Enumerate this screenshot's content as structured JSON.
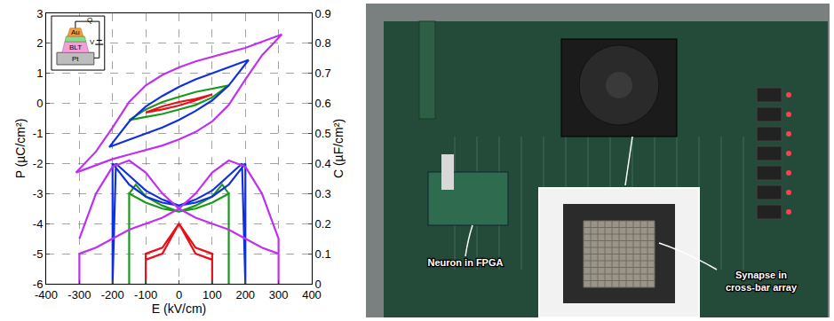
{
  "chart_data": {
    "type": "line",
    "xlabel": "E (kV/cm)",
    "ylabel": "P (µC/cm²)",
    "y2label": "C (µF/cm²)",
    "xlim": [
      -400,
      400
    ],
    "xticks": [
      -400,
      -300,
      -200,
      -100,
      0,
      100,
      200,
      300,
      400
    ],
    "ylim": [
      -6,
      3
    ],
    "yticks": [
      -6,
      -5,
      -4,
      -3,
      -2,
      -1,
      0,
      1,
      2,
      3
    ],
    "y2lim": [
      0,
      0.9
    ],
    "y2ticks": [
      0,
      0.1,
      0.2,
      0.3,
      0.4,
      0.5,
      0.6,
      0.7,
      0.8,
      0.9
    ],
    "grid": true,
    "annotations": [
      "Au",
      "BLT",
      "Pt",
      "Q",
      "V"
    ],
    "series": [
      {
        "color": "#e8101a",
        "x": [
          100,
          50,
          0,
          -50,
          -100,
          -50,
          0,
          50,
          100
        ],
        "values": [
          0.3,
          0.15,
          0.05,
          -0.1,
          -0.3,
          -0.2,
          -0.07,
          0.1,
          0.3
        ]
      },
      {
        "color": "#1a9a1a",
        "x": [
          150,
          100,
          50,
          0,
          -50,
          -100,
          -150,
          -100,
          -50,
          0,
          50,
          100,
          150
        ],
        "values": [
          0.6,
          0.5,
          0.38,
          0.22,
          0.05,
          -0.2,
          -0.55,
          -0.45,
          -0.35,
          -0.2,
          -0.05,
          0.2,
          0.6
        ]
      },
      {
        "color": "#1030e0",
        "x": [
          210,
          150,
          100,
          50,
          0,
          -50,
          -100,
          -150,
          -210,
          -150,
          -100,
          -50,
          0,
          50,
          100,
          150,
          210
        ],
        "values": [
          1.45,
          1.2,
          1.0,
          0.8,
          0.55,
          0.25,
          -0.1,
          -0.6,
          -1.45,
          -1.2,
          -1.0,
          -0.8,
          -0.55,
          -0.25,
          0.1,
          0.6,
          1.45
        ]
      },
      {
        "color": "#c030f0",
        "x": [
          310,
          250,
          200,
          150,
          100,
          50,
          0,
          -50,
          -100,
          -150,
          -200,
          -250,
          -310,
          -250,
          -200,
          -150,
          -100,
          -50,
          0,
          50,
          100,
          150,
          200,
          250,
          310
        ],
        "values": [
          2.3,
          2.05,
          1.85,
          1.7,
          1.55,
          1.4,
          1.2,
          0.95,
          0.6,
          0.05,
          -0.8,
          -1.6,
          -2.3,
          -2.05,
          -1.85,
          -1.7,
          -1.55,
          -1.4,
          -1.2,
          -0.95,
          -0.6,
          -0.05,
          0.8,
          1.6,
          2.3
        ]
      },
      {
        "color": "#e8101a",
        "axis": "y2",
        "x": [
          -100,
          -100,
          -50,
          0,
          50,
          100,
          100,
          100,
          50,
          0,
          -50,
          -100,
          -100
        ],
        "values": [
          0,
          0.1,
          0.12,
          0.2,
          0.12,
          0.1,
          0,
          0.08,
          0.1,
          0.2,
          0.1,
          0.08,
          0
        ]
      },
      {
        "color": "#1a9a1a",
        "axis": "y2",
        "x": [
          -150,
          -150,
          -100,
          -50,
          0,
          50,
          100,
          130,
          150,
          150,
          150,
          100,
          50,
          0,
          -50,
          -100,
          -130,
          -150,
          -150
        ],
        "values": [
          0,
          0.3,
          0.27,
          0.25,
          0.24,
          0.26,
          0.29,
          0.33,
          0.3,
          0,
          0.3,
          0.27,
          0.25,
          0.24,
          0.26,
          0.29,
          0.33,
          0.3,
          0
        ]
      },
      {
        "color": "#1030e0",
        "axis": "y2",
        "x": [
          -200,
          -200,
          -150,
          -100,
          -50,
          0,
          50,
          100,
          150,
          190,
          200,
          200,
          150,
          100,
          50,
          0,
          -50,
          -100,
          -150,
          -190,
          -200
        ],
        "values": [
          0,
          0.4,
          0.33,
          0.29,
          0.27,
          0.26,
          0.28,
          0.31,
          0.36,
          0.4,
          0,
          0.4,
          0.33,
          0.29,
          0.27,
          0.26,
          0.28,
          0.31,
          0.36,
          0.4,
          0
        ]
      },
      {
        "color": "#c030f0",
        "axis": "y2",
        "x": [
          -300,
          -300,
          -250,
          -200,
          -150,
          -100,
          -50,
          0,
          50,
          100,
          150,
          200,
          250,
          300,
          300,
          300,
          250,
          200,
          150,
          100,
          50,
          0,
          -50,
          -100,
          -150,
          -200,
          -250,
          -300
        ],
        "values": [
          0,
          0.1,
          0.12,
          0.15,
          0.18,
          0.2,
          0.22,
          0.25,
          0.3,
          0.37,
          0.41,
          0.39,
          0.3,
          0.15,
          0,
          0.1,
          0.12,
          0.15,
          0.18,
          0.2,
          0.22,
          0.25,
          0.3,
          0.37,
          0.41,
          0.39,
          0.3,
          0.15
        ]
      }
    ]
  },
  "photo": {
    "labels": [
      "Neuron in FPGA",
      "Synapse in cross-bar array"
    ]
  }
}
